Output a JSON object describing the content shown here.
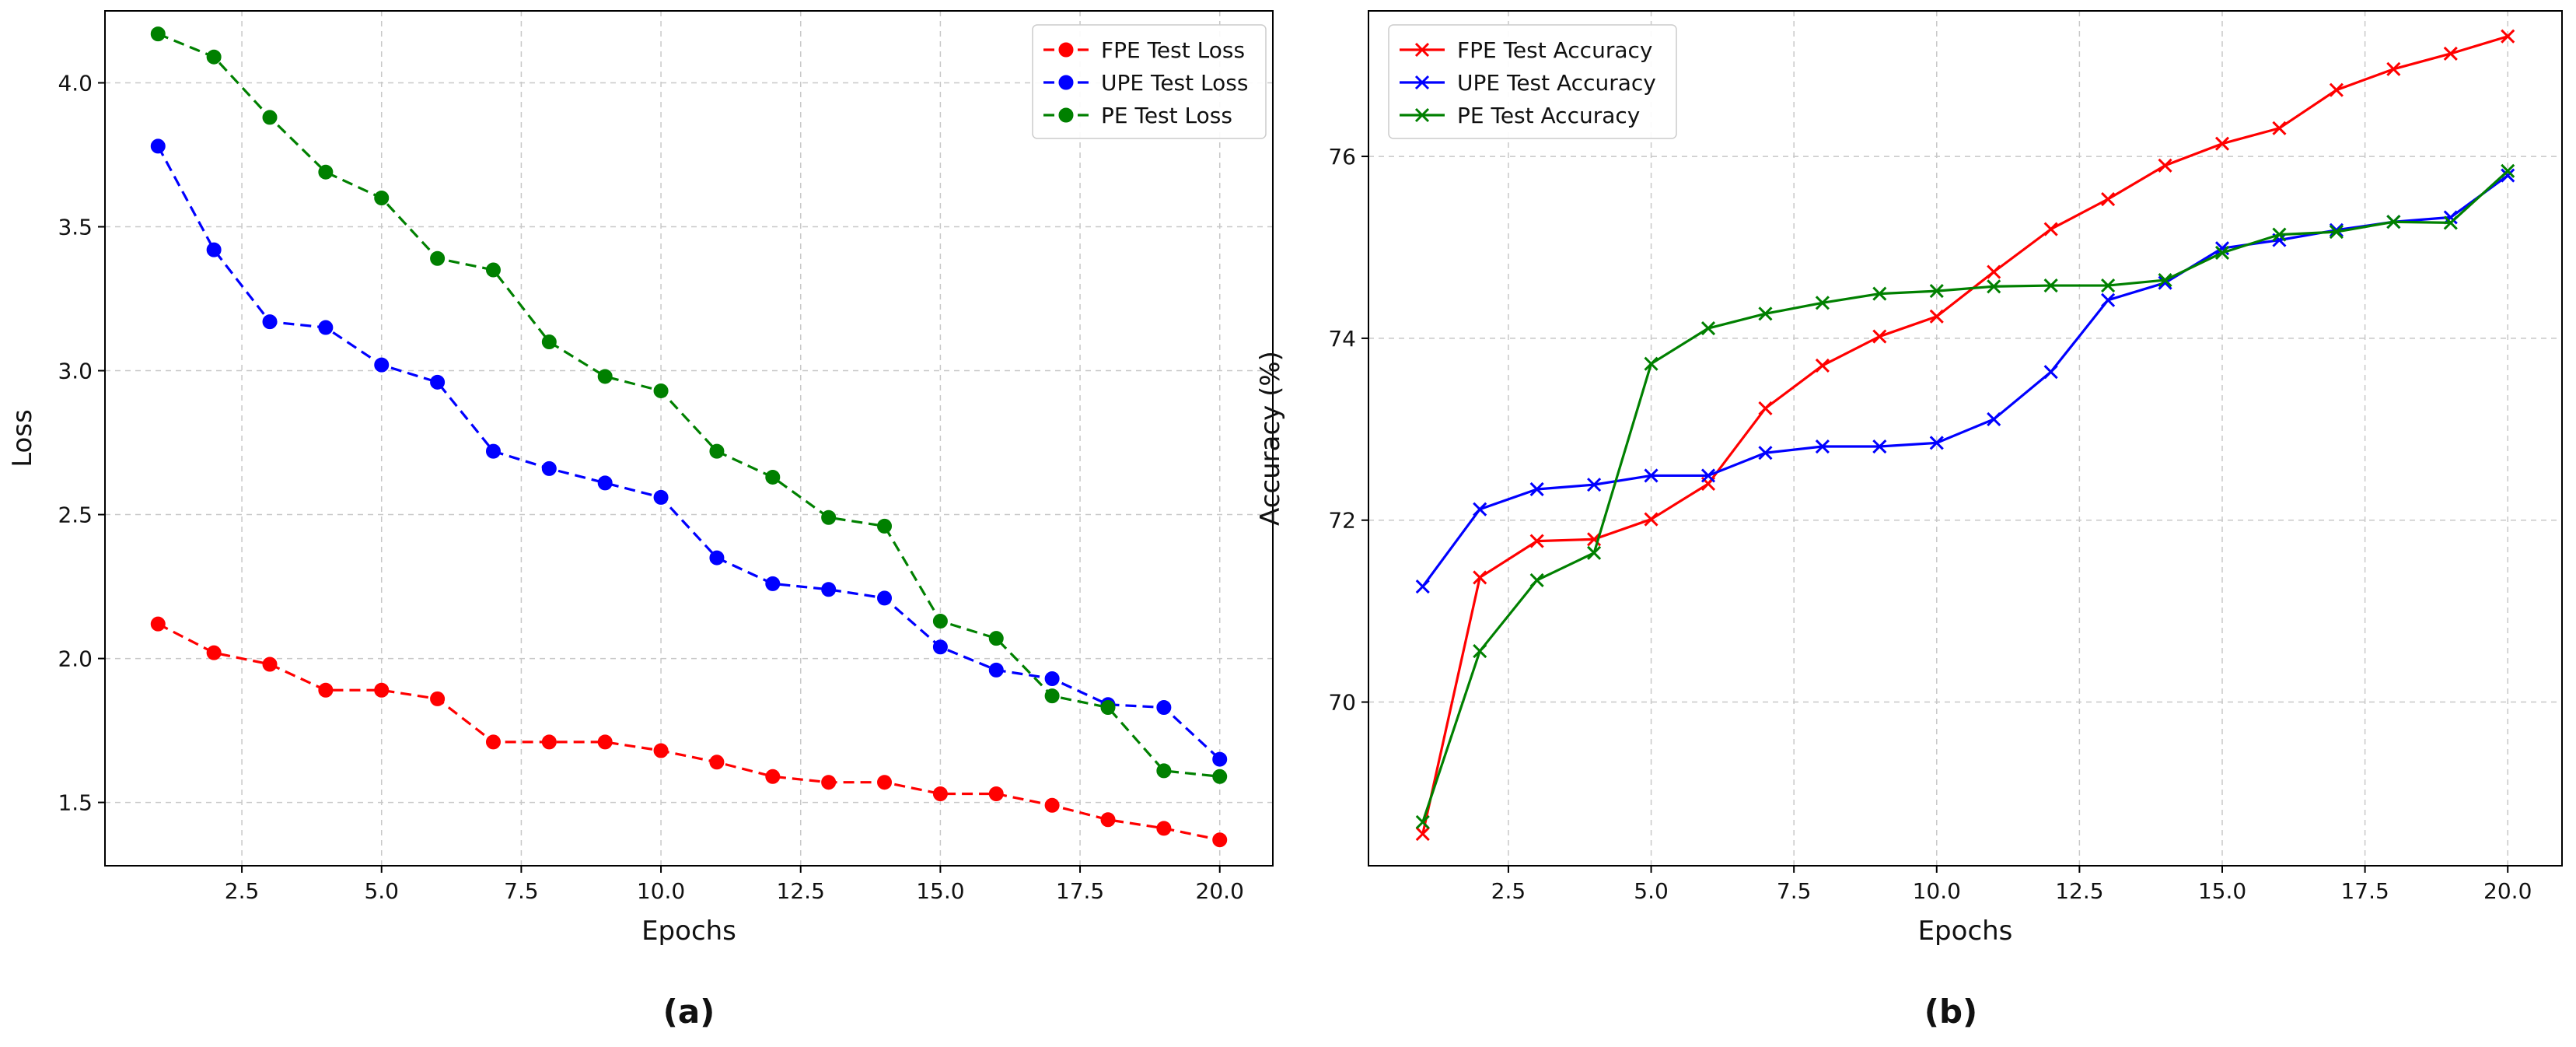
{
  "figure": {
    "captions": [
      "(a)",
      "(b)"
    ]
  },
  "chart_data": [
    {
      "type": "line",
      "panel": "(a)",
      "title": "",
      "xlabel": "Epochs",
      "ylabel": "Loss",
      "xlim": [
        0.05,
        20.95
      ],
      "ylim": [
        1.28,
        4.25
      ],
      "xticks": [
        2.5,
        5.0,
        7.5,
        10.0,
        12.5,
        15.0,
        17.5,
        20.0
      ],
      "xtick_labels": [
        "2.5",
        "5.0",
        "7.5",
        "10.0",
        "12.5",
        "15.0",
        "17.5",
        "20.0"
      ],
      "yticks": [
        1.5,
        2.0,
        2.5,
        3.0,
        3.5,
        4.0
      ],
      "ytick_labels": [
        "1.5",
        "2.0",
        "2.5",
        "3.0",
        "3.5",
        "4.0"
      ],
      "grid": true,
      "legend_position": "top-right",
      "x": [
        1,
        2,
        3,
        4,
        5,
        6,
        7,
        8,
        9,
        10,
        11,
        12,
        13,
        14,
        15,
        16,
        17,
        18,
        19,
        20
      ],
      "series": [
        {
          "name": "FPE Test Loss",
          "color": "#ff0000",
          "style": "dashed",
          "marker": "circle",
          "values": [
            2.12,
            2.02,
            1.98,
            1.89,
            1.89,
            1.86,
            1.71,
            1.71,
            1.71,
            1.68,
            1.64,
            1.59,
            1.57,
            1.57,
            1.53,
            1.53,
            1.49,
            1.44,
            1.41,
            1.37
          ]
        },
        {
          "name": "UPE Test Loss",
          "color": "#0000ff",
          "style": "dashed",
          "marker": "circle",
          "values": [
            3.78,
            3.42,
            3.17,
            3.15,
            3.02,
            2.96,
            2.72,
            2.66,
            2.61,
            2.56,
            2.35,
            2.26,
            2.24,
            2.21,
            2.04,
            1.96,
            1.93,
            1.84,
            1.83,
            1.65
          ]
        },
        {
          "name": "PE Test Loss",
          "color": "#008000",
          "style": "dashed",
          "marker": "circle",
          "values": [
            4.17,
            4.09,
            3.88,
            3.69,
            3.6,
            3.39,
            3.35,
            3.1,
            2.98,
            2.93,
            2.72,
            2.63,
            2.49,
            2.46,
            2.13,
            2.07,
            1.87,
            1.83,
            1.61,
            1.59
          ]
        }
      ]
    },
    {
      "type": "line",
      "panel": "(b)",
      "title": "",
      "xlabel": "Epochs",
      "ylabel": "Accuracy (%)",
      "xlim": [
        0.05,
        20.95
      ],
      "ylim": [
        68.2,
        77.6
      ],
      "xticks": [
        2.5,
        5.0,
        7.5,
        10.0,
        12.5,
        15.0,
        17.5,
        20.0
      ],
      "xtick_labels": [
        "2.5",
        "5.0",
        "7.5",
        "10.0",
        "12.5",
        "15.0",
        "17.5",
        "20.0"
      ],
      "yticks": [
        70,
        72,
        74,
        76
      ],
      "ytick_labels": [
        "70",
        "72",
        "74",
        "76"
      ],
      "grid": true,
      "legend_position": "top-left",
      "x": [
        1,
        2,
        3,
        4,
        5,
        6,
        7,
        8,
        9,
        10,
        11,
        12,
        13,
        14,
        15,
        16,
        17,
        18,
        19,
        20
      ],
      "series": [
        {
          "name": "FPE Test Accuracy",
          "color": "#ff0000",
          "style": "solid",
          "marker": "x",
          "values": [
            68.55,
            71.37,
            71.77,
            71.79,
            72.01,
            72.4,
            73.23,
            73.7,
            74.02,
            74.24,
            74.73,
            75.2,
            75.53,
            75.9,
            76.14,
            76.31,
            76.73,
            76.96,
            77.13,
            77.32
          ]
        },
        {
          "name": "UPE Test Accuracy",
          "color": "#0000ff",
          "style": "solid",
          "marker": "x",
          "values": [
            71.27,
            72.12,
            72.34,
            72.39,
            72.49,
            72.49,
            72.74,
            72.81,
            72.81,
            72.85,
            73.11,
            73.63,
            74.42,
            74.61,
            74.99,
            75.08,
            75.19,
            75.28,
            75.33,
            75.79
          ]
        },
        {
          "name": "PE Test Accuracy",
          "color": "#008000",
          "style": "solid",
          "marker": "x",
          "values": [
            68.68,
            70.56,
            71.34,
            71.64,
            73.72,
            74.11,
            74.27,
            74.39,
            74.49,
            74.52,
            74.57,
            74.58,
            74.58,
            74.64,
            74.94,
            75.14,
            75.17,
            75.28,
            75.27,
            75.84
          ]
        }
      ]
    }
  ]
}
